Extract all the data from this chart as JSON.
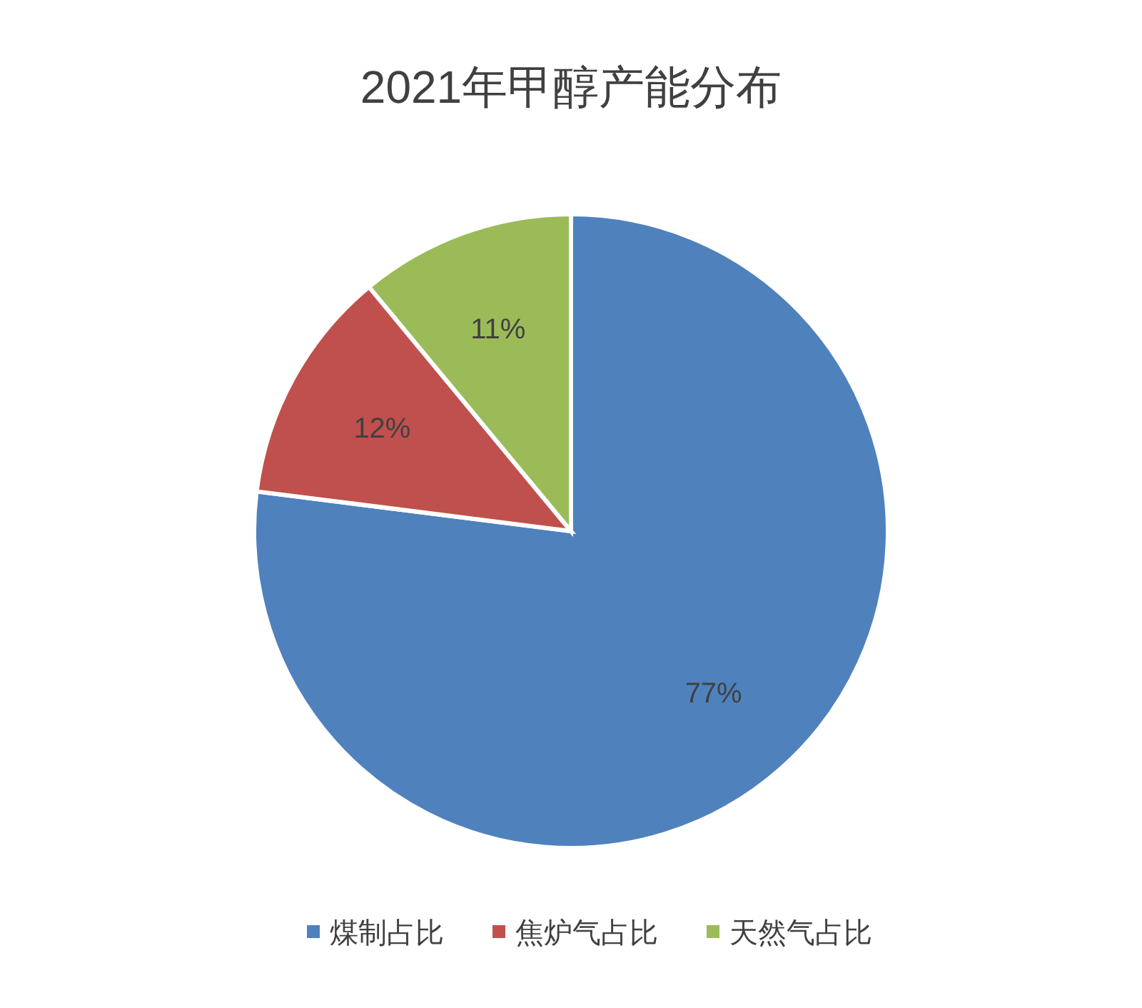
{
  "chart_data": {
    "type": "pie",
    "title": "2021年甲醇产能分布",
    "categories": [
      "煤制占比",
      "焦炉气占比",
      "天然气占比"
    ],
    "values": [
      77,
      12,
      11
    ],
    "colors": [
      "#4f81bd",
      "#c0504d",
      "#9bbb59"
    ],
    "value_labels": [
      "77%",
      "12%",
      "11%"
    ],
    "legend": "bottom"
  }
}
